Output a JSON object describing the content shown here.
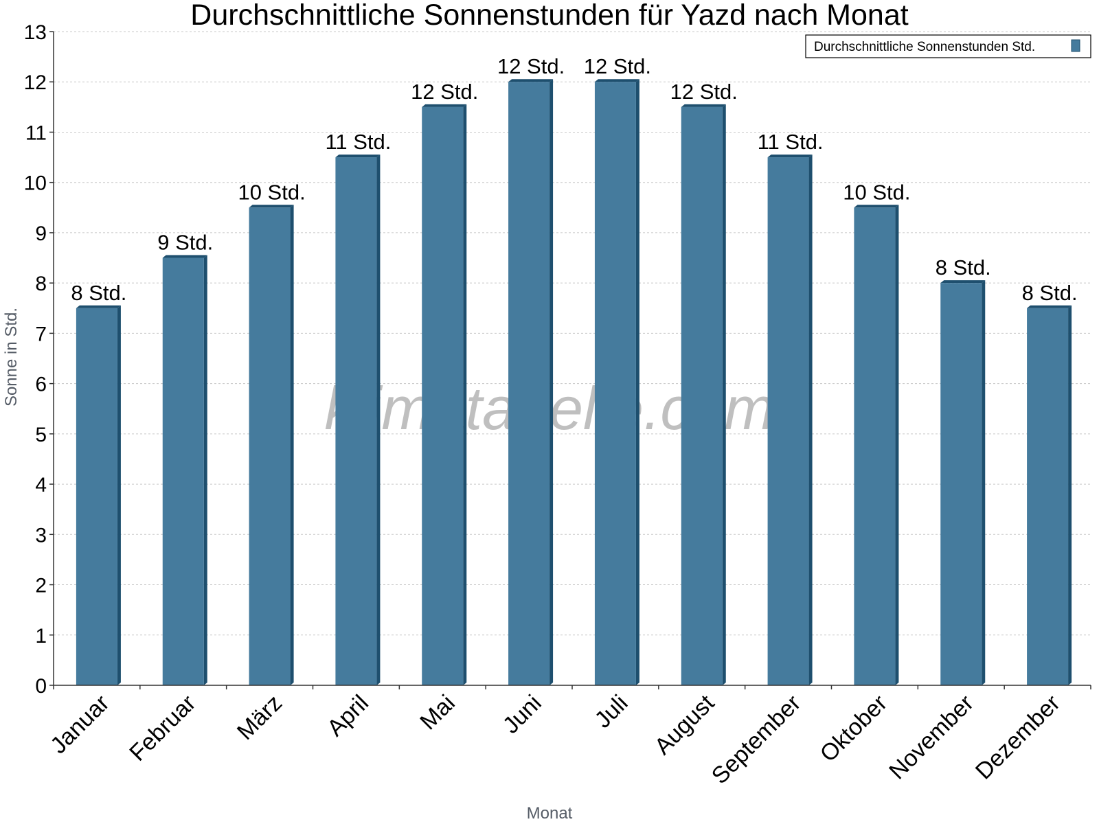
{
  "chart_data": {
    "type": "bar",
    "title": "Durchschnittliche Sonnenstunden für Yazd nach Monat",
    "xlabel": "Monat",
    "ylabel": "Sonne in Std.",
    "ylim": [
      0,
      13
    ],
    "yticks": [
      0,
      1,
      2,
      3,
      4,
      5,
      6,
      7,
      8,
      9,
      10,
      11,
      12,
      13
    ],
    "grid": true,
    "legend_position": "top-right",
    "categories": [
      "Januar",
      "Februar",
      "März",
      "April",
      "Mai",
      "Juni",
      "Juli",
      "August",
      "September",
      "Oktober",
      "November",
      "Dezember"
    ],
    "series": [
      {
        "name": "Durchschnittliche Sonnenstunden Std.",
        "color": "#457b9d",
        "side_color": "#1e4f6e",
        "values": [
          7.5,
          8.5,
          9.5,
          10.5,
          11.5,
          12.0,
          12.0,
          11.5,
          10.5,
          9.5,
          8.0,
          7.5
        ],
        "labels": [
          "8 Std.",
          "9 Std.",
          "10 Std.",
          "11 Std.",
          "12 Std.",
          "12 Std.",
          "12 Std.",
          "12 Std.",
          "11 Std.",
          "10 Std.",
          "8 Std.",
          "8 Std."
        ]
      }
    ],
    "watermark": "klimatabelle.com"
  }
}
